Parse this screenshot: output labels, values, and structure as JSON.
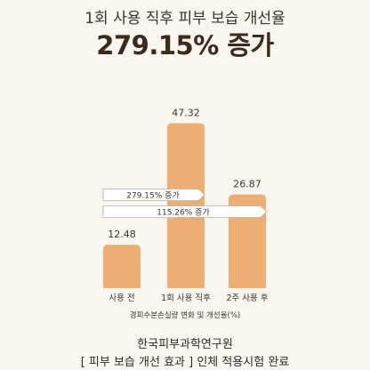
{
  "header": {
    "title": "1회 사용 직후 피부 보습 개선율",
    "headline": "279.15% 증가"
  },
  "chart_data": {
    "type": "bar",
    "categories": [
      "사용 전",
      "1회 사용 직후",
      "2주 사용 후"
    ],
    "values": [
      12.48,
      47.32,
      26.87
    ],
    "value_labels": [
      "12.48",
      "47.32",
      "26.87"
    ],
    "ylim": [
      0,
      50
    ],
    "xlabel": "경피수분손실량 변화 및 개선율(%)",
    "ylabel": "",
    "grid": false,
    "bar_color": "#ecae72",
    "annotations": [
      {
        "text": "279.15% 증가",
        "from": "사용 전",
        "to": "1회 사용 직후"
      },
      {
        "text": "115.26% 증가",
        "from": "사용 전",
        "to": "2주 사용 후"
      }
    ]
  },
  "footer": {
    "org": "한국피부과학연구원",
    "note": "[ 피부 보습 개선 효과 ] 인체 적용시험 완료"
  }
}
